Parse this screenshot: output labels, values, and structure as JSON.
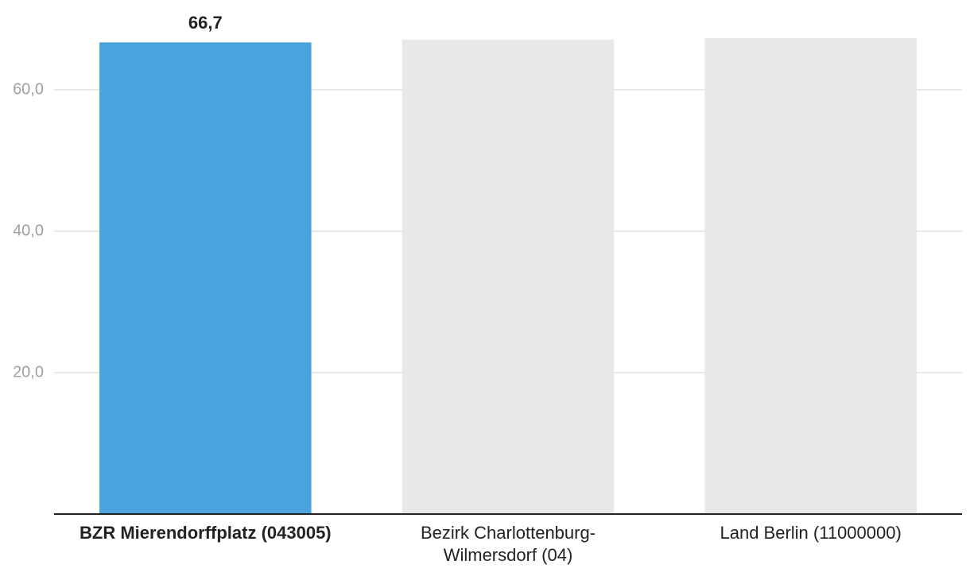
{
  "chart_data": {
    "type": "bar",
    "categories": [
      "BZR Mierendorffplatz (043005)",
      "Bezirk Charlottenburg-Wilmersdorf (04)",
      "Land Berlin (11000000)"
    ],
    "values": [
      66.7,
      67.1,
      67.3
    ],
    "value_labels": [
      "66,7",
      null,
      null
    ],
    "colors": [
      "#4ba3de",
      "#e8e8e8",
      "#e8e8e8"
    ],
    "highlight": 0,
    "ylim": [
      0,
      70
    ],
    "yticks": [
      {
        "value": 20,
        "label": "20,0"
      },
      {
        "value": 40,
        "label": "40,0"
      },
      {
        "value": 60,
        "label": "60,0"
      }
    ],
    "grid": true
  }
}
